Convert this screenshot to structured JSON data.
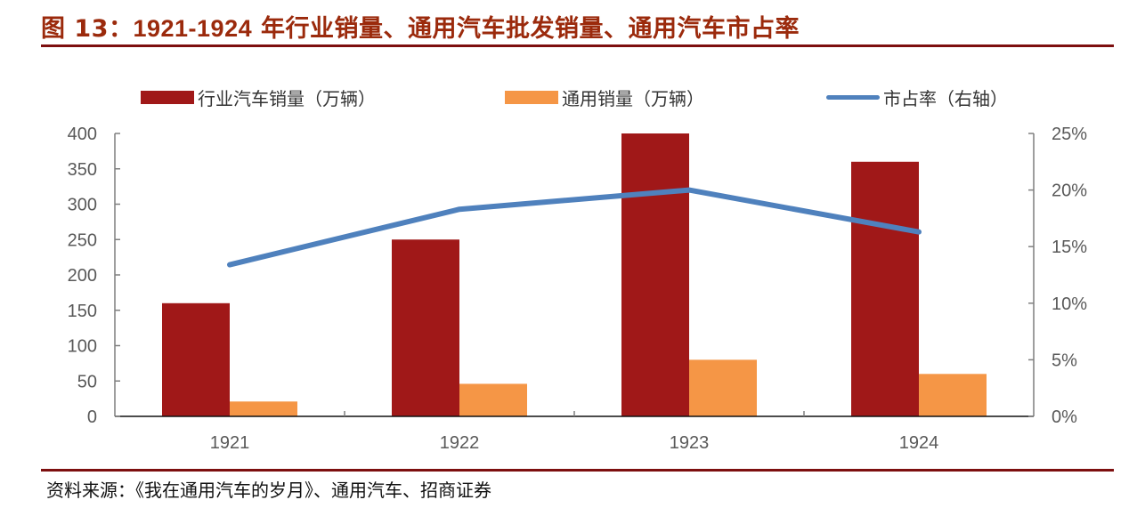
{
  "header": {
    "figure_label": "图 13：",
    "title_years": "1921-1924",
    "title_text": " 年行业销量、通用汽车批发销量、通用汽车市占率"
  },
  "legend": {
    "items": [
      {
        "label": "行业汽车销量（万辆）",
        "color": "#a01818",
        "kind": "bar"
      },
      {
        "label": "通用销量（万辆）",
        "color": "#f59646",
        "kind": "bar"
      },
      {
        "label": "市占率（右轴）",
        "color": "#4f81bd",
        "kind": "line"
      }
    ]
  },
  "colors": {
    "industry_bar": "#a01818",
    "gm_bar": "#f59646",
    "share_line": "#4f81bd",
    "title": "#9b2a0c",
    "rule": "#7d0f0f",
    "axis_text": "#595959"
  },
  "footer": {
    "source": "资料来源：《我在通用汽车的岁月》、通用汽车、招商证券"
  },
  "chart_data": {
    "type": "bar",
    "title": "1921-1924年行业销量、通用汽车批发销量、通用汽车市占率",
    "categories": [
      "1921",
      "1922",
      "1923",
      "1924"
    ],
    "series": [
      {
        "name": "行业汽车销量（万辆）",
        "type": "bar",
        "axis": "left",
        "values": [
          160,
          250,
          400,
          360
        ]
      },
      {
        "name": "通用销量（万辆）",
        "type": "bar",
        "axis": "left",
        "values": [
          21,
          46,
          80,
          60
        ]
      },
      {
        "name": "市占率（右轴）",
        "type": "line",
        "axis": "right",
        "values": [
          0.134,
          0.183,
          0.2,
          0.163
        ]
      }
    ],
    "xlabel": "",
    "ylabel": "",
    "ylim": [
      0,
      400
    ],
    "y_ticks": [
      "0",
      "50",
      "100",
      "150",
      "200",
      "250",
      "300",
      "350",
      "400"
    ],
    "y2lim": [
      0,
      0.25
    ],
    "y2_ticks": [
      "0%",
      "5%",
      "10%",
      "15%",
      "20%",
      "25%"
    ],
    "legend_position": "top",
    "grid": false
  }
}
